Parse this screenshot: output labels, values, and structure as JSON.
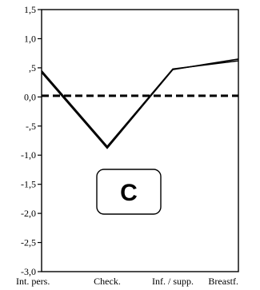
{
  "chart_data": {
    "type": "line",
    "categories": [
      "Int. pers.",
      "Check.",
      "Inf. / supp.",
      "Breastf."
    ],
    "series": [
      {
        "values": [
          0.45,
          -0.85,
          0.48,
          0.62
        ],
        "color": "#000000"
      },
      {
        "values": [
          0.42,
          -0.88,
          0.47,
          0.65
        ],
        "color": "#000000"
      }
    ],
    "reference_line": {
      "y": 0.02,
      "style": "dashed",
      "color": "#000000"
    },
    "ylim": [
      -3.0,
      1.5
    ],
    "yticks": [
      1.5,
      1.0,
      0.5,
      0.0,
      -0.5,
      -1.0,
      -1.5,
      -2.0,
      -2.5,
      -3.0
    ],
    "ytick_labels": [
      "1,5",
      "1,0",
      ",5",
      "0,0",
      "-,5",
      "-1,0",
      "-1,5",
      "-2,0",
      "-2,5",
      "-3,0"
    ],
    "title": "",
    "xlabel": "",
    "ylabel": "",
    "grid": false,
    "panel_label": "C"
  }
}
